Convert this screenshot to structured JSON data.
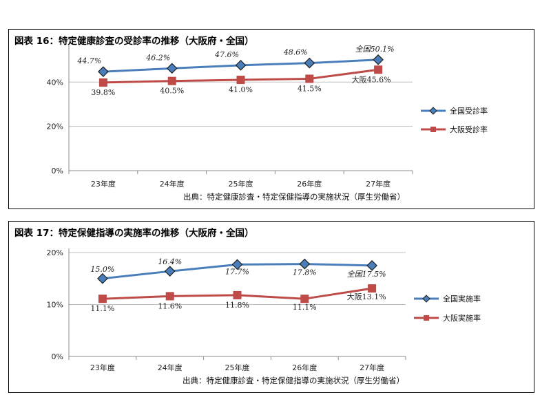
{
  "chart_data": [
    {
      "type": "line",
      "title": "図表 16：特定健康診査の受診率の推移（大阪府・全国）",
      "categories": [
        "23年度",
        "24年度",
        "25年度",
        "26年度",
        "27年度"
      ],
      "yticks": [
        "0%",
        "20%",
        "40%"
      ],
      "ylim": [
        0,
        55
      ],
      "ytick_values": [
        0,
        20,
        40
      ],
      "legend": "right",
      "series": [
        {
          "name": "全国受診率",
          "color": "#4a7ebb",
          "marker": "diamond",
          "values": [
            44.7,
            46.2,
            47.6,
            48.6,
            50.1
          ],
          "labels": [
            "44.7%",
            "46.2%",
            "47.6%",
            "48.6%",
            "全国50.1%"
          ]
        },
        {
          "name": "大阪受診率",
          "color": "#be4b48",
          "marker": "square",
          "values": [
            39.8,
            40.5,
            41.0,
            41.5,
            45.6
          ],
          "labels": [
            "39.8%",
            "40.5%",
            "41.0%",
            "41.5%",
            "大阪45.6%"
          ]
        }
      ],
      "source": "出典：特定健康診査・特定保健指導の実施状況（厚生労働省）"
    },
    {
      "type": "line",
      "title": "図表 17：特定保健指導の実施率の推移（大阪府・全国）",
      "categories": [
        "23年度",
        "24年度",
        "25年度",
        "26年度",
        "27年度"
      ],
      "yticks": [
        "0%",
        "10%",
        "20%"
      ],
      "ylim": [
        0,
        20
      ],
      "ytick_values": [
        0,
        10,
        20
      ],
      "legend": "right",
      "series": [
        {
          "name": "全国実施率",
          "color": "#4a7ebb",
          "marker": "diamond",
          "values": [
            15.0,
            16.4,
            17.7,
            17.8,
            17.5
          ],
          "labels": [
            "15.0%",
            "16.4%",
            "17.7%",
            "17.8%",
            "全国17.5%"
          ]
        },
        {
          "name": "大阪実施率",
          "color": "#be4b48",
          "marker": "square",
          "values": [
            11.1,
            11.6,
            11.8,
            11.1,
            13.1
          ],
          "labels": [
            "11.1%",
            "11.6%",
            "11.8%",
            "11.1%",
            "大阪13.1%"
          ]
        }
      ],
      "source": "出典：特定健康診査・特定保健指導の実施状況（厚生労働省）"
    }
  ]
}
